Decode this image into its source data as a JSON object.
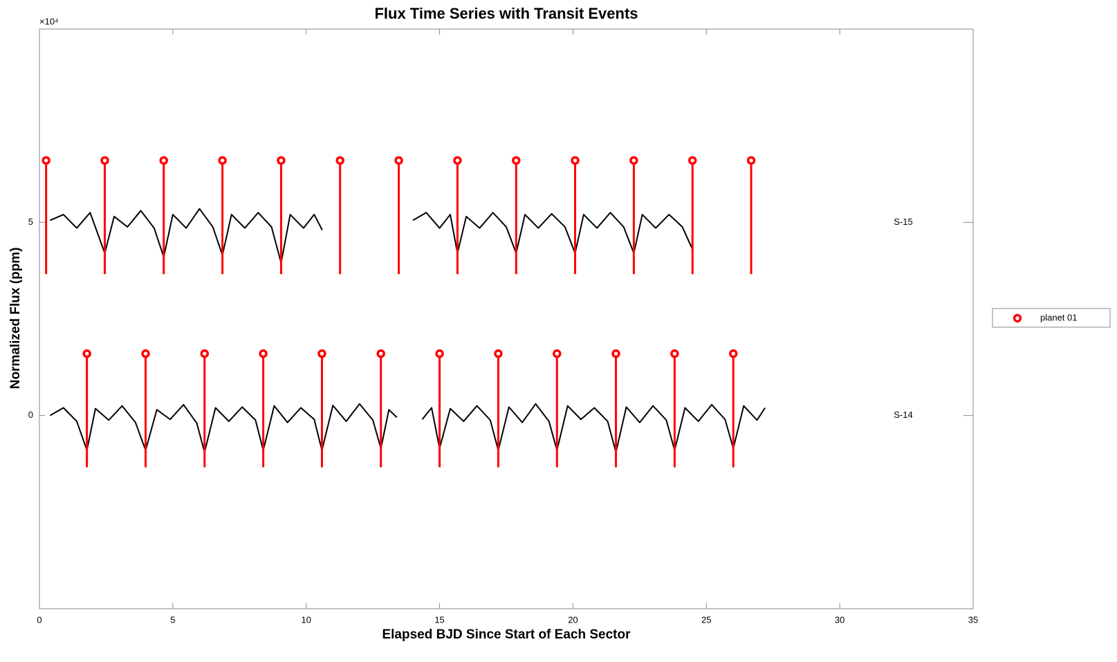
{
  "chart_data": {
    "type": "line",
    "title": "Flux Time Series with Transit Events",
    "x_label": "Elapsed BJD Since Start of Each Sector",
    "y_label": "Normalized Flux (ppm)",
    "y_exponent_label": "×10⁴",
    "xlim": [
      0,
      35
    ],
    "xticks": [
      0,
      5,
      10,
      15,
      20,
      25,
      30,
      35
    ],
    "ylim": [
      -50000,
      100000
    ],
    "yticks": [
      0,
      {
        "value": 50000,
        "label": "5"
      }
    ],
    "flux_color": "#000000",
    "legend_position": "east outside",
    "sectors": [
      {
        "label": "S-14",
        "x": [
          0.4,
          0.9,
          1.4,
          1.78,
          2.1,
          2.6,
          3.1,
          3.6,
          3.98,
          4.4,
          4.9,
          5.4,
          5.9,
          6.19,
          6.6,
          7.1,
          7.6,
          8.1,
          8.39,
          8.8,
          9.3,
          9.8,
          10.3,
          10.59,
          11.0,
          11.5,
          12.0,
          12.5,
          12.8,
          13.1,
          13.4,
          13.9,
          14.35,
          14.7,
          15.0,
          15.4,
          15.9,
          16.4,
          16.9,
          17.2,
          17.6,
          18.1,
          18.6,
          19.1,
          19.4,
          19.8,
          20.3,
          20.8,
          21.3,
          21.61,
          22.0,
          22.5,
          23.0,
          23.5,
          23.81,
          24.2,
          24.7,
          25.2,
          25.7,
          26.01,
          26.4,
          26.9,
          27.2
        ],
        "values": [
          0,
          2000,
          -1500,
          -9000,
          1800,
          -1200,
          2500,
          -1800,
          -9000,
          1500,
          -1000,
          2800,
          -2000,
          -9500,
          2000,
          -1500,
          2200,
          -1200,
          -9000,
          2500,
          -1800,
          2000,
          -1000,
          -9000,
          2600,
          -1500,
          3000,
          -1200,
          -8500,
          1500,
          -500,
          null,
          -1000,
          2000,
          -8500,
          1800,
          -1500,
          2500,
          -1200,
          -9000,
          2200,
          -1800,
          3000,
          -1500,
          -9000,
          2500,
          -1000,
          2000,
          -1500,
          -9500,
          2200,
          -1800,
          2500,
          -1200,
          -9000,
          2000,
          -1500,
          2800,
          -1000,
          -8500,
          2500,
          -1200,
          2000
        ]
      },
      {
        "label": "S-15",
        "x": [
          0.4,
          0.9,
          1.4,
          1.9,
          2.45,
          2.8,
          3.3,
          3.8,
          4.3,
          4.66,
          5.0,
          5.5,
          6.0,
          6.5,
          6.86,
          7.2,
          7.7,
          8.2,
          8.7,
          9.06,
          9.4,
          9.9,
          10.3,
          10.6,
          12.0,
          14.0,
          14.5,
          15.0,
          15.4,
          15.67,
          16.0,
          16.5,
          17.0,
          17.5,
          17.87,
          18.2,
          18.7,
          19.2,
          19.7,
          20.08,
          20.4,
          20.9,
          21.4,
          21.9,
          22.28,
          22.6,
          23.1,
          23.6,
          24.1,
          24.48
        ],
        "values": [
          50500,
          52000,
          48500,
          52500,
          42000,
          51500,
          48800,
          53000,
          48500,
          41000,
          52000,
          48500,
          53500,
          48800,
          41500,
          52000,
          48500,
          52500,
          48800,
          39500,
          52000,
          48500,
          52000,
          48000,
          null,
          50500,
          52500,
          48500,
          52000,
          42000,
          51500,
          48500,
          52500,
          48800,
          42000,
          52000,
          48500,
          52200,
          48800,
          42000,
          52000,
          48500,
          52500,
          48800,
          42000,
          52000,
          48500,
          52000,
          48800,
          43000
        ]
      }
    ],
    "transits": {
      "name": "planet 01",
      "color": "#ff0000",
      "sectors": [
        {
          "x": [
            1.78,
            3.98,
            6.19,
            8.39,
            10.59,
            12.8,
            15.0,
            17.2,
            19.4,
            21.61,
            23.81,
            26.01
          ],
          "top": 16000,
          "bottom": -13400
        },
        {
          "x": [
            0.25,
            2.45,
            4.66,
            6.86,
            9.06,
            11.27,
            13.47,
            15.67,
            17.87,
            20.08,
            22.28,
            24.48,
            26.68
          ],
          "top": 66000,
          "bottom": 36600
        }
      ]
    }
  }
}
